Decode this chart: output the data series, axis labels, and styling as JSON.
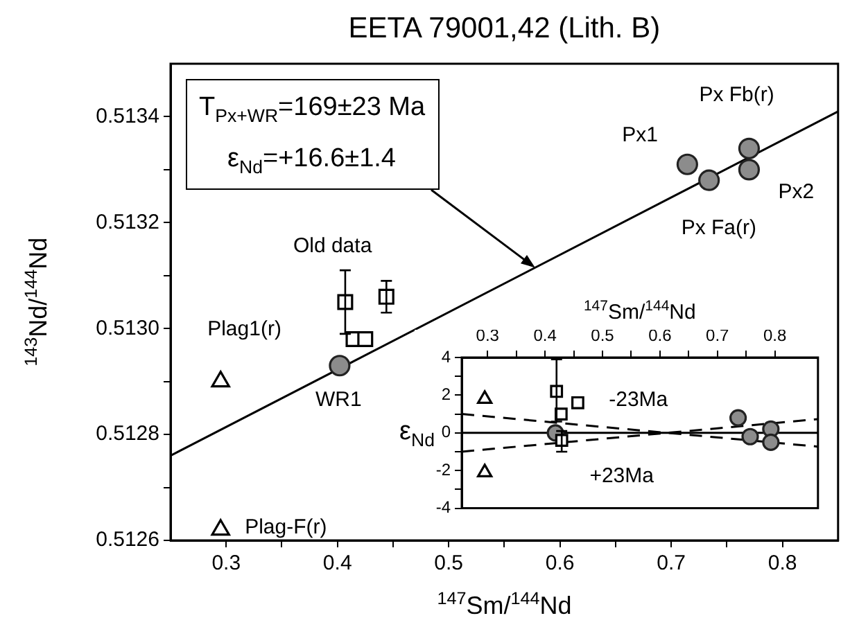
{
  "chart_data": [
    {
      "type": "scatter",
      "title": "EETA 79001,42 (Lith. B)",
      "xlabel": "$^{147}$Sm/$^{144}$Nd",
      "ylabel": "$^{143}$Nd/$^{144}$Nd",
      "xlim": [
        0.25,
        0.85
      ],
      "xticks": [
        0.3,
        {
          "value": 0.35,
          "label": null
        },
        0.4,
        {
          "value": 0.45,
          "label": null
        },
        0.5,
        {
          "value": 0.55,
          "label": null
        },
        0.6,
        {
          "value": 0.65,
          "label": null
        },
        0.7,
        {
          "value": 0.75,
          "label": null
        },
        0.8
      ],
      "ylim": [
        0.5126,
        0.5135
      ],
      "yticks": [
        0.5126,
        {
          "value": 0.5127,
          "label": null
        },
        0.5128,
        {
          "value": 0.5129,
          "label": null
        },
        {
          "value": 0.513,
          "label": "0.5130"
        },
        {
          "value": 0.5131,
          "label": null
        },
        0.5132,
        {
          "value": 0.5133,
          "label": null
        },
        0.5134
      ],
      "grid": false,
      "legend": false,
      "series": [
        {
          "type": "line",
          "marker": "none",
          "color": "#000000",
          "x": [
            0.25,
            0.85
          ],
          "values": [
            0.51276,
            0.51341
          ]
        },
        {
          "marker": "triangle",
          "color": "#000000",
          "x": [
            0.295,
            0.295
          ],
          "values": [
            0.5129,
            0.51262
          ]
        },
        {
          "marker": "square",
          "color": "#000000",
          "x": [
            0.407,
            0.4145,
            0.425,
            0.444
          ],
          "values": [
            0.51305,
            0.51298,
            0.51298,
            0.51306
          ],
          "errors": [
            [
              0.51299,
              0.51311
            ],
            null,
            null,
            3e-05
          ]
        },
        {
          "marker": "circle",
          "color": "#8c8c8c",
          "x": [
            0.402,
            0.7145,
            0.734,
            0.77,
            0.77
          ],
          "values": [
            0.51293,
            0.51331,
            0.51328,
            0.51334,
            0.5133
          ]
        }
      ],
      "annotations": [
        "T$_{Px+WR}$=169±23 Ma",
        "ε$_{Nd}$=+16.6±1.4",
        {
          "text": "Plag1(r)",
          "x": 0.295,
          "y": 0.5129
        },
        {
          "text": "Plag-F(r)",
          "x": 0.295,
          "y": 0.51262
        },
        {
          "text": "WR1",
          "x": 0.402,
          "y": 0.51293
        },
        {
          "text": "Old data",
          "x": 0.407,
          "y": 0.51305
        },
        {
          "text": "Px1",
          "x": 0.7145,
          "y": 0.51331
        },
        {
          "text": "Px Fb(r)",
          "x": 0.77,
          "y": 0.51334
        },
        {
          "text": "Px2",
          "x": 0.77,
          "y": 0.5133
        },
        {
          "text": "Px Fa(r)",
          "x": 0.734,
          "y": 0.51328
        }
      ]
    },
    {
      "type": "scatter",
      "xlabel": "$^{147}$Sm/$^{144}$Nd",
      "ylabel": "ε$_{Nd}$",
      "xlim": [
        0.255,
        0.875
      ],
      "xticks": [
        0.3,
        {
          "value": 0.35,
          "label": null
        },
        0.4,
        {
          "value": 0.45,
          "label": null
        },
        0.5,
        {
          "value": 0.55,
          "label": null
        },
        0.6,
        {
          "value": 0.65,
          "label": null
        },
        0.7,
        {
          "value": 0.75,
          "label": null
        },
        0.8
      ],
      "ylim": [
        -4,
        4
      ],
      "yticks": [
        -4,
        {
          "value": -3,
          "label": null
        },
        -2,
        {
          "value": -1,
          "label": null
        },
        0,
        {
          "value": 1,
          "label": null
        },
        2,
        {
          "value": 3,
          "label": null
        },
        4
      ],
      "grid": false,
      "legend": false,
      "series": [
        {
          "type": "line",
          "marker": "none",
          "color": "#000000",
          "x": [
            0.255,
            0.875
          ],
          "values": [
            0,
            0
          ]
        },
        {
          "type": "line",
          "marker": "none",
          "line_style": "dashed",
          "color": "#000000",
          "x": [
            0.255,
            0.613,
            0.875
          ],
          "values": [
            1,
            0,
            -0.73
          ]
        },
        {
          "type": "line",
          "marker": "none",
          "line_style": "dashed",
          "color": "#000000",
          "x": [
            0.255,
            0.613,
            0.875
          ],
          "values": [
            -1,
            0,
            0.73
          ]
        },
        {
          "marker": "triangle",
          "color": "#000000",
          "x": [
            0.295,
            0.295
          ],
          "values": [
            1.8,
            -2.1
          ]
        },
        {
          "marker": "square",
          "color": "#000000",
          "x": [
            0.42,
            0.457,
            0.428,
            0.429
          ],
          "values": [
            2.2,
            1.6,
            1,
            -0.4
          ],
          "errors": [
            [
              0.6,
              3.9
            ],
            null,
            null,
            [
              -1,
              0.1
            ]
          ]
        },
        {
          "marker": "circle",
          "color": "#8c8c8c",
          "x": [
            0.418,
            0.736,
            0.757,
            0.793,
            0.793
          ],
          "values": [
            0,
            0.8,
            -0.2,
            0.2,
            -0.5
          ]
        }
      ],
      "annotations": [
        {
          "text": "-23Ma",
          "x": 0.563,
          "y": 0.14
        },
        {
          "text": "+23Ma",
          "x": 0.533,
          "y": -0.22
        }
      ]
    }
  ]
}
